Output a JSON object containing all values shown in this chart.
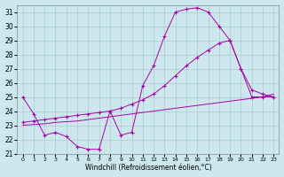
{
  "xlabel": "Windchill (Refroidissement éolien,°C)",
  "background_color": "#cce8ee",
  "line_color": "#aa00aa",
  "grid_color": "#aacccc",
  "line1_x": [
    0,
    1,
    2,
    3,
    4,
    5,
    6,
    7,
    8,
    9,
    10,
    11,
    12,
    13,
    14,
    15,
    16,
    17,
    18,
    19,
    20,
    21,
    22,
    23
  ],
  "line1_y": [
    25.0,
    23.8,
    22.3,
    22.5,
    22.2,
    21.5,
    21.3,
    21.3,
    24.0,
    22.3,
    22.5,
    25.8,
    27.2,
    29.3,
    31.0,
    31.2,
    31.3,
    31.0,
    30.0,
    29.0,
    27.0,
    25.0,
    25.0,
    25.0
  ],
  "line2_x": [
    0,
    1,
    2,
    3,
    4,
    5,
    6,
    7,
    8,
    9,
    10,
    11,
    12,
    13,
    14,
    15,
    16,
    17,
    18,
    19,
    20,
    21,
    22,
    23
  ],
  "line2_y": [
    23.2,
    23.3,
    23.4,
    23.5,
    23.6,
    23.7,
    23.8,
    23.9,
    24.0,
    24.2,
    24.5,
    24.8,
    25.2,
    25.8,
    26.5,
    27.2,
    27.8,
    28.3,
    28.8,
    29.0,
    27.0,
    25.5,
    25.2,
    25.0
  ],
  "line3_x": [
    0,
    1,
    2,
    3,
    4,
    5,
    6,
    7,
    8,
    9,
    10,
    11,
    12,
    13,
    14,
    15,
    16,
    17,
    18,
    19,
    20,
    21,
    22,
    23
  ],
  "line3_y": [
    23.0,
    23.05,
    23.1,
    23.2,
    23.25,
    23.3,
    23.4,
    23.5,
    23.6,
    23.7,
    23.8,
    23.9,
    24.0,
    24.1,
    24.2,
    24.3,
    24.4,
    24.5,
    24.6,
    24.7,
    24.8,
    24.9,
    25.0,
    25.2
  ]
}
